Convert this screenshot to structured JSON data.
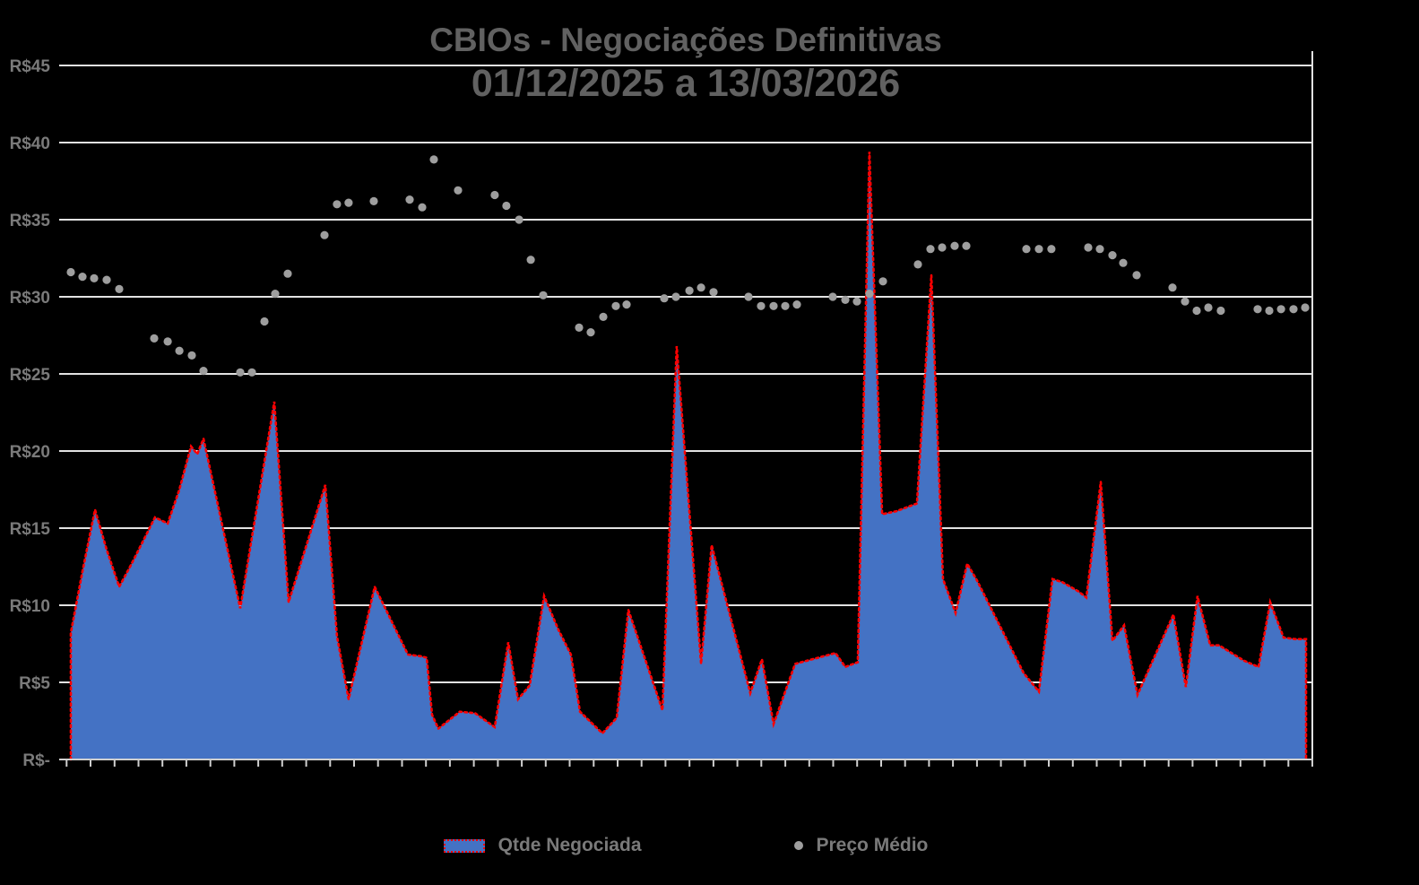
{
  "title": {
    "line1": "CBIOs - Negociações Definitivas",
    "line2": "01/12/2025 a 13/03/2026"
  },
  "legend": {
    "area_label": "Qtde Negociada",
    "scatter_label": "Preço Médio"
  },
  "colors": {
    "background": "#000000",
    "area_fill": "#4472c4",
    "area_border": "#ff0000",
    "scatter_dot": "#9e9e9e",
    "gridline": "#e2e2e2",
    "axis_line": "#cfcfcf",
    "title_text": "#616161",
    "axis_text": "#7a7a7a"
  },
  "y_axis": {
    "tick_labels": [
      "R$-",
      "R$5",
      "R$10",
      "R$15",
      "R$20",
      "R$25",
      "R$30",
      "R$35",
      "R$40",
      "R$45"
    ],
    "min": 0,
    "max": 45,
    "step": 5
  },
  "x_axis": {
    "tick_marks": 53,
    "tick_labels_visible": false
  },
  "chart_data": {
    "type": "combo",
    "title": "CBIOs - Negociações Definitivas 01/12/2025 a 13/03/2026",
    "ylabel": "R$",
    "ylim": [
      0,
      45
    ],
    "grid": true,
    "legend_position": "bottom",
    "x_unit": "percent-of-date-range 01/12/2025..13/03/2026 (no tick labels shown)",
    "series": [
      {
        "name": "Qtde Negociada",
        "type": "area",
        "points": [
          [
            0.93,
            8.2
          ],
          [
            1.86,
            12.2
          ],
          [
            2.86,
            16.2
          ],
          [
            3.79,
            13.6
          ],
          [
            4.79,
            11.2
          ],
          [
            5.72,
            12.6
          ],
          [
            6.72,
            14.2
          ],
          [
            7.65,
            15.7
          ],
          [
            8.66,
            15.3
          ],
          [
            9.59,
            17.5
          ],
          [
            10.52,
            20.3
          ],
          [
            11.02,
            19.8
          ],
          [
            11.52,
            20.8
          ],
          [
            14.45,
            9.8
          ],
          [
            17.17,
            23.2
          ],
          [
            18.31,
            10.2
          ],
          [
            21.24,
            17.8
          ],
          [
            22.17,
            8.0
          ],
          [
            23.1,
            3.9
          ],
          [
            25.18,
            11.2
          ],
          [
            27.83,
            6.8
          ],
          [
            28.83,
            6.7
          ],
          [
            29.33,
            6.6
          ],
          [
            29.76,
            2.9
          ],
          [
            30.26,
            2.0
          ],
          [
            31.97,
            3.1
          ],
          [
            33.19,
            3.0
          ],
          [
            34.76,
            2.1
          ],
          [
            35.84,
            7.6
          ],
          [
            36.62,
            3.9
          ],
          [
            37.55,
            4.8
          ],
          [
            38.7,
            10.6
          ],
          [
            39.84,
            8.4
          ],
          [
            40.84,
            6.8
          ],
          [
            41.56,
            3.1
          ],
          [
            43.35,
            1.7
          ],
          [
            44.49,
            2.7
          ],
          [
            45.42,
            9.7
          ],
          [
            48.14,
            3.2
          ],
          [
            49.28,
            26.8
          ],
          [
            51.22,
            6.2
          ],
          [
            52.07,
            13.9
          ],
          [
            55.15,
            4.3
          ],
          [
            56.08,
            6.5
          ],
          [
            57.01,
            2.3
          ],
          [
            58.73,
            6.2
          ],
          [
            61.95,
            6.9
          ],
          [
            62.73,
            6.0
          ],
          [
            63.73,
            6.3
          ],
          [
            64.66,
            39.4
          ],
          [
            65.67,
            15.9
          ],
          [
            66.81,
            16.1
          ],
          [
            68.45,
            16.6
          ],
          [
            69.6,
            31.4
          ],
          [
            70.53,
            11.7
          ],
          [
            71.53,
            9.5
          ],
          [
            72.46,
            12.7
          ],
          [
            73.25,
            11.6
          ],
          [
            76.97,
            5.6
          ],
          [
            78.18,
            4.4
          ],
          [
            79.26,
            11.7
          ],
          [
            80.04,
            11.5
          ],
          [
            81.33,
            10.9
          ],
          [
            81.97,
            10.5
          ],
          [
            83.12,
            18.0
          ],
          [
            84.05,
            7.7
          ],
          [
            84.98,
            8.7
          ],
          [
            86.05,
            4.2
          ],
          [
            88.91,
            9.4
          ],
          [
            89.91,
            4.7
          ],
          [
            90.84,
            10.6
          ],
          [
            91.85,
            7.4
          ],
          [
            92.56,
            7.4
          ],
          [
            94.56,
            6.4
          ],
          [
            95.71,
            6.0
          ],
          [
            96.64,
            10.2
          ],
          [
            97.71,
            7.9
          ],
          [
            98.64,
            7.8
          ],
          [
            99.5,
            7.8
          ]
        ]
      },
      {
        "name": "Preço Médio",
        "type": "scatter",
        "points": [
          [
            0.93,
            31.6
          ],
          [
            1.86,
            31.3
          ],
          [
            2.79,
            31.2
          ],
          [
            3.79,
            31.1
          ],
          [
            4.79,
            30.5
          ],
          [
            7.58,
            27.3
          ],
          [
            8.66,
            27.1
          ],
          [
            9.59,
            26.5
          ],
          [
            10.59,
            26.2
          ],
          [
            11.52,
            25.2
          ],
          [
            14.45,
            25.1
          ],
          [
            15.38,
            25.1
          ],
          [
            16.38,
            28.4
          ],
          [
            17.24,
            30.2
          ],
          [
            18.24,
            31.5
          ],
          [
            21.17,
            34.0
          ],
          [
            22.17,
            36.0
          ],
          [
            23.1,
            36.1
          ],
          [
            25.11,
            36.2
          ],
          [
            27.97,
            36.3
          ],
          [
            28.97,
            35.8
          ],
          [
            29.9,
            38.9
          ],
          [
            31.83,
            36.9
          ],
          [
            34.76,
            36.6
          ],
          [
            35.69,
            35.9
          ],
          [
            36.7,
            35.0
          ],
          [
            37.63,
            32.4
          ],
          [
            38.63,
            30.1
          ],
          [
            41.49,
            28.0
          ],
          [
            42.42,
            27.7
          ],
          [
            43.42,
            28.7
          ],
          [
            44.42,
            29.4
          ],
          [
            45.28,
            29.5
          ],
          [
            48.28,
            29.9
          ],
          [
            49.21,
            30.0
          ],
          [
            50.29,
            30.4
          ],
          [
            51.22,
            30.6
          ],
          [
            52.22,
            30.3
          ],
          [
            55.01,
            30.0
          ],
          [
            56.01,
            29.4
          ],
          [
            57.01,
            29.4
          ],
          [
            57.94,
            29.4
          ],
          [
            58.87,
            29.5
          ],
          [
            61.73,
            30.0
          ],
          [
            62.73,
            29.8
          ],
          [
            63.66,
            29.7
          ],
          [
            64.66,
            30.2
          ],
          [
            65.74,
            31.0
          ],
          [
            68.53,
            32.1
          ],
          [
            69.53,
            33.1
          ],
          [
            70.46,
            33.2
          ],
          [
            71.46,
            33.3
          ],
          [
            72.39,
            33.3
          ],
          [
            77.18,
            33.1
          ],
          [
            78.18,
            33.1
          ],
          [
            79.18,
            33.1
          ],
          [
            82.12,
            33.2
          ],
          [
            83.05,
            33.1
          ],
          [
            84.05,
            32.7
          ],
          [
            84.91,
            32.2
          ],
          [
            85.98,
            31.4
          ],
          [
            88.84,
            30.6
          ],
          [
            89.84,
            29.7
          ],
          [
            90.77,
            29.1
          ],
          [
            91.7,
            29.3
          ],
          [
            92.7,
            29.1
          ],
          [
            95.64,
            29.2
          ],
          [
            96.57,
            29.1
          ],
          [
            97.5,
            29.2
          ],
          [
            98.5,
            29.2
          ],
          [
            99.43,
            29.3
          ]
        ]
      }
    ]
  }
}
